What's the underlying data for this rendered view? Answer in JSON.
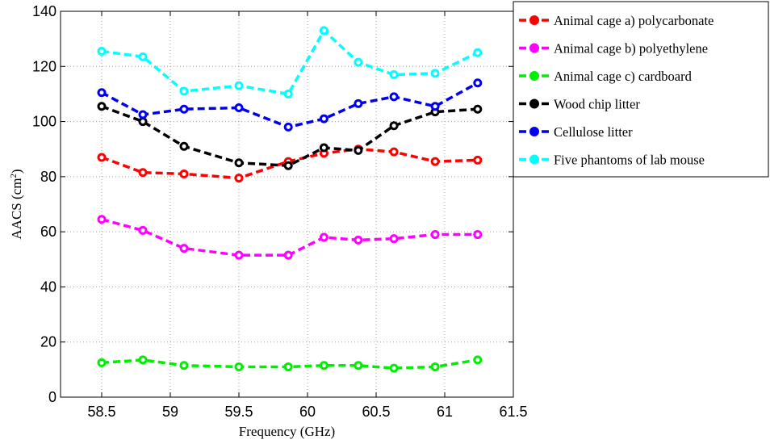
{
  "chart_data": {
    "type": "line",
    "title": "",
    "xlabel": "Frequency (GHz)",
    "ylabel": "AACS (cm²)",
    "xlim": [
      58.2,
      61.5
    ],
    "ylim": [
      0,
      140
    ],
    "xticks": [
      58.5,
      59,
      59.5,
      60,
      60.5,
      61,
      61.5
    ],
    "xtick_labels": [
      "58.5",
      "59",
      "59.5",
      "60",
      "60.5",
      "61",
      "61.5"
    ],
    "yticks": [
      0,
      20,
      40,
      60,
      80,
      100,
      120,
      140
    ],
    "ytick_labels": [
      "0",
      "20",
      "40",
      "60",
      "80",
      "100",
      "120",
      "140"
    ],
    "grid": true,
    "legend_position": "outside-right-top",
    "x": [
      58.5,
      58.8,
      59.1,
      59.5,
      59.86,
      60.12,
      60.37,
      60.63,
      60.93,
      61.24
    ],
    "series": [
      {
        "name": "Animal cage a) polycarbonate",
        "color": "#ff0000",
        "values": [
          87,
          81.5,
          81,
          79.5,
          85.5,
          88.5,
          90,
          89,
          85.5,
          86
        ]
      },
      {
        "name": "Animal cage b) polyethylene",
        "color": "#ff00ff",
        "values": [
          64.5,
          60.5,
          54,
          51.5,
          51.5,
          58,
          57,
          57.5,
          59,
          59
        ]
      },
      {
        "name": "Animal cage c) cardboard",
        "color": "#00ee00",
        "values": [
          12.5,
          13.5,
          11.5,
          11,
          11,
          11.5,
          11.5,
          10.5,
          11,
          13.5
        ]
      },
      {
        "name": "Wood chip litter",
        "color": "#000000",
        "values": [
          105.5,
          100,
          91,
          85,
          84,
          90.5,
          89.5,
          98.5,
          103.5,
          104.5
        ]
      },
      {
        "name": "Cellulose litter",
        "color": "#0000ee",
        "values": [
          110.5,
          102.5,
          104.5,
          105,
          98,
          101,
          106.5,
          109,
          105.5,
          114
        ]
      },
      {
        "name": "Five phantoms of lab mouse",
        "color": "#00ffff",
        "values": [
          125.5,
          123.5,
          111,
          113,
          110,
          133,
          121.5,
          117,
          117.5,
          125
        ]
      }
    ]
  }
}
